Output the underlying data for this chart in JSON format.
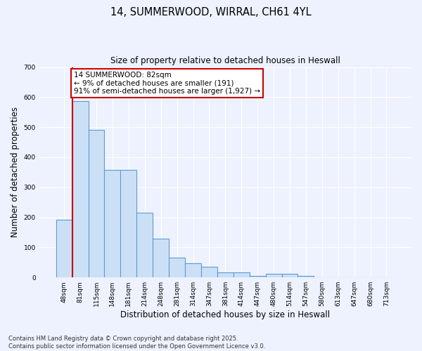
{
  "title_line1": "14, SUMMERWOOD, WIRRAL, CH61 4YL",
  "title_line2": "Size of property relative to detached houses in Heswall",
  "xlabel": "Distribution of detached houses by size in Heswall",
  "ylabel": "Number of detached properties",
  "categories": [
    "48sqm",
    "81sqm",
    "115sqm",
    "148sqm",
    "181sqm",
    "214sqm",
    "248sqm",
    "281sqm",
    "314sqm",
    "347sqm",
    "381sqm",
    "414sqm",
    "447sqm",
    "480sqm",
    "514sqm",
    "547sqm",
    "580sqm",
    "613sqm",
    "647sqm",
    "680sqm",
    "713sqm"
  ],
  "values": [
    193,
    587,
    490,
    357,
    357,
    216,
    130,
    65,
    48,
    35,
    18,
    18,
    6,
    11,
    11,
    6,
    0,
    0,
    0,
    0,
    0
  ],
  "bar_color": "#cce0f5",
  "bar_edge_color": "#5b9bd5",
  "marker_line_color": "#cc0000",
  "annotation_text": "14 SUMMERWOOD: 82sqm\n← 9% of detached houses are smaller (191)\n91% of semi-detached houses are larger (1,927) →",
  "annotation_box_color": "#cc0000",
  "ylim": [
    0,
    700
  ],
  "yticks": [
    0,
    100,
    200,
    300,
    400,
    500,
    600,
    700
  ],
  "background_color": "#eef2ff",
  "grid_color": "#ffffff",
  "footnote": "Contains HM Land Registry data © Crown copyright and database right 2025.\nContains public sector information licensed under the Open Government Licence v3.0."
}
